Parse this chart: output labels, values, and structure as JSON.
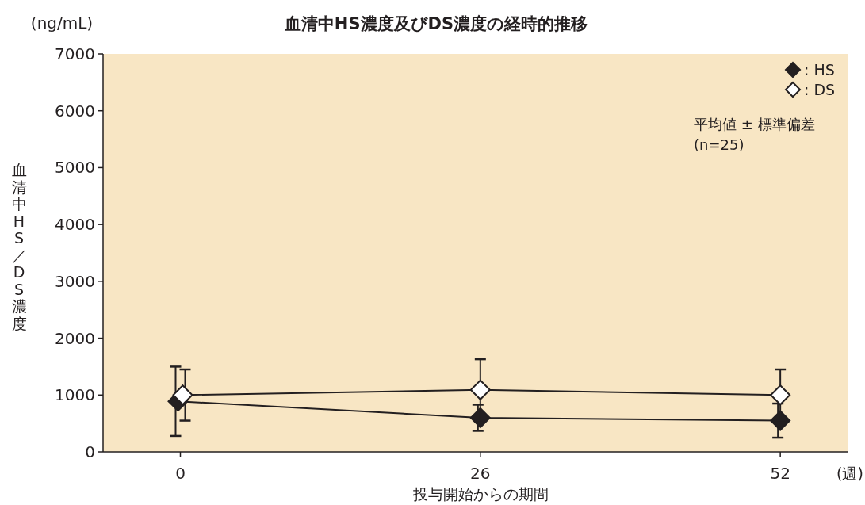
{
  "chart_data": {
    "type": "line",
    "title": "血清中HS濃度及びDS濃度の経時的推移",
    "xlabel": "投与開始からの期間",
    "ylabel": "血清中HS／DS濃度",
    "annotations": [
      "(ng/mL)",
      "(週)",
      "平均値 ± 標準偏差",
      "(n=25)"
    ],
    "x": [
      0,
      26,
      52
    ],
    "xlim": [
      -6.7,
      57.9
    ],
    "xticks": [
      0,
      26,
      52
    ],
    "ylim": [
      0,
      7000
    ],
    "yticks": [
      0,
      1000,
      2000,
      3000,
      4000,
      5000,
      6000,
      7000
    ],
    "grid": false,
    "legend": "top right",
    "marker": "diamond",
    "series": [
      {
        "name": ": HS",
        "color": "#231f20",
        "values": [
          890,
          600,
          550
        ],
        "errors": [
          610,
          230,
          300
        ]
      },
      {
        "name": ": DS",
        "color": "#ffffff",
        "values": [
          1000,
          1090,
          1000
        ],
        "errors": [
          450,
          540,
          450
        ]
      }
    ]
  }
}
